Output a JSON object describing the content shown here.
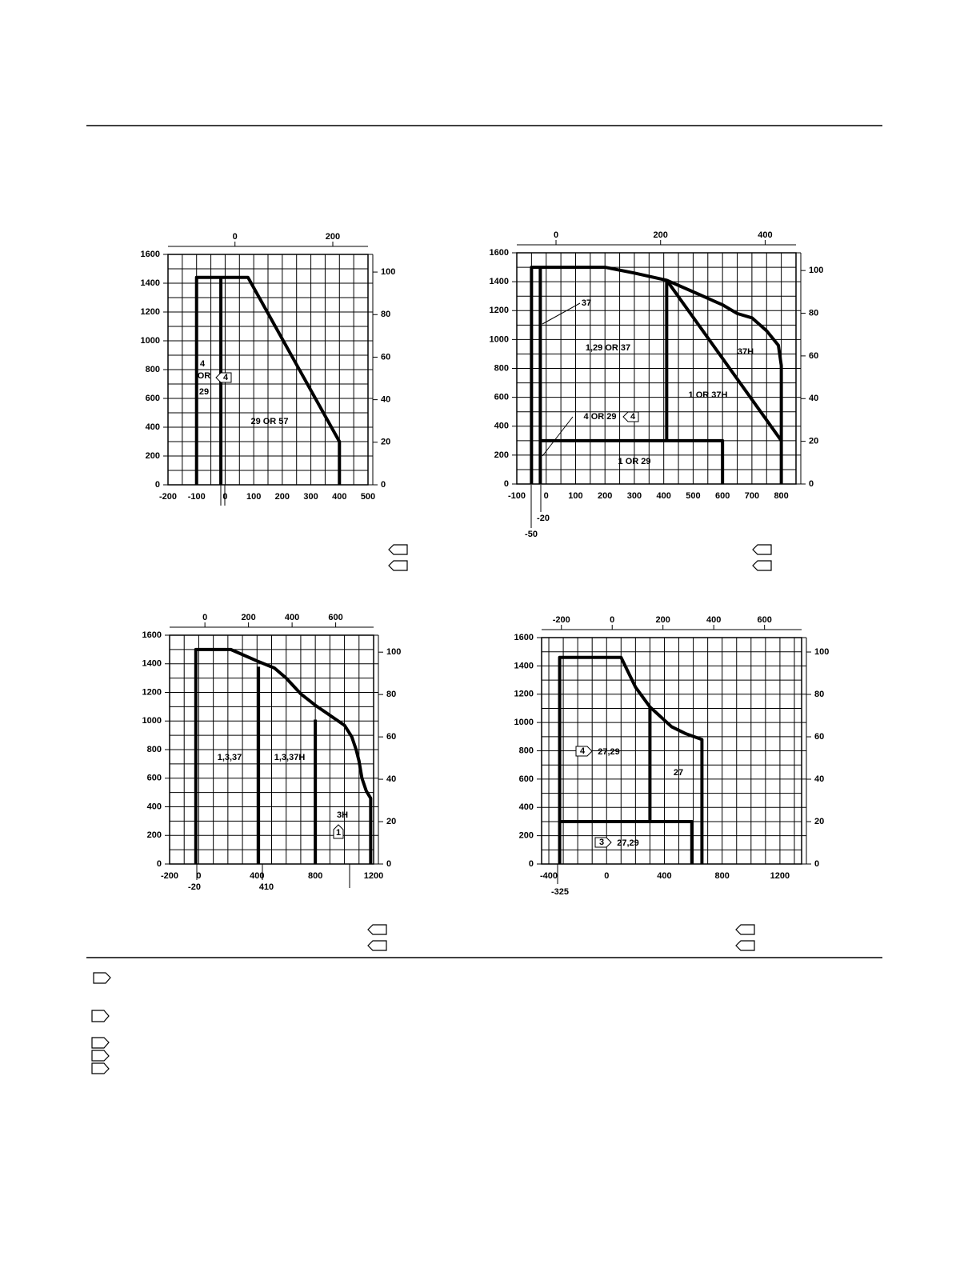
{
  "chart_data": [
    {
      "type": "line",
      "color": "#000000",
      "grid": true,
      "xlim": [
        -200,
        500
      ],
      "xticks": [
        -200,
        -100,
        0,
        100,
        200,
        300,
        400,
        500
      ],
      "xminor": [
        -150,
        -50,
        50,
        150,
        250,
        350,
        450
      ],
      "ylim": [
        0,
        1600
      ],
      "yticks": [
        0,
        200,
        400,
        600,
        800,
        1000,
        1200,
        1400,
        1600
      ],
      "yminor": [
        100,
        300,
        500,
        700,
        900,
        1100,
        1300,
        1500
      ],
      "x2lim": [
        -137,
        272
      ],
      "x2ticks": [
        0,
        200
      ],
      "y2lim": [
        0,
        108.3
      ],
      "y2ticks": [
        0,
        20,
        40,
        60,
        80,
        100
      ],
      "series": [
        {
          "x": [
            -100,
            -100,
            80,
            400,
            400
          ],
          "values": [
            0,
            1440,
            1440,
            300,
            0
          ]
        },
        {
          "x": [
            -15,
            -15
          ],
          "values": [
            0,
            1440
          ]
        }
      ],
      "annotations": [
        "4",
        "OR",
        "29",
        "4",
        "29 OR 57"
      ]
    },
    {
      "type": "line",
      "color": "#000000",
      "grid": true,
      "xlim": [
        -100,
        850
      ],
      "xticks": [
        -100,
        0,
        100,
        200,
        300,
        400,
        500,
        600,
        700,
        800
      ],
      "xminor": [
        -50,
        50,
        150,
        250,
        350,
        450,
        550,
        650,
        750
      ],
      "ylim": [
        0,
        1600
      ],
      "yticks": [
        0,
        200,
        400,
        600,
        800,
        1000,
        1200,
        1400,
        1600
      ],
      "yminor": [
        100,
        300,
        500,
        700,
        900,
        1100,
        1300,
        1500
      ],
      "x2lim": [
        -75,
        459
      ],
      "x2ticks": [
        0,
        200,
        400
      ],
      "y2lim": [
        0,
        108.3
      ],
      "y2ticks": [
        0,
        20,
        40,
        60,
        80,
        100
      ],
      "series": [
        {
          "x": [
            -50,
            -50,
            200,
            300,
            410,
            500,
            600,
            650,
            700,
            750,
            790,
            800,
            800
          ],
          "values": [
            0,
            1500,
            1500,
            1460,
            1410,
            1330,
            1240,
            1180,
            1150,
            1060,
            960,
            820,
            0
          ]
        },
        {
          "x": [
            -20,
            -20
          ],
          "values": [
            0,
            1500
          ]
        },
        {
          "x": [
            410,
            800
          ],
          "values": [
            1410,
            300
          ]
        },
        {
          "x": [
            410,
            410
          ],
          "values": [
            1410,
            300
          ]
        },
        {
          "x": [
            -20,
            600,
            600
          ],
          "values": [
            300,
            300,
            0
          ]
        }
      ],
      "annotations": [
        "37",
        "1,29 OR 37",
        "37H",
        "1 OR 37H",
        "4 OR 29",
        "4",
        "1 OR 29",
        "-20",
        "-50"
      ]
    },
    {
      "type": "line",
      "color": "#000000",
      "grid": true,
      "xlim": [
        -200,
        1200
      ],
      "xticks": [
        -200,
        0,
        400,
        800,
        1200
      ],
      "xminor": [
        -100,
        100,
        200,
        300,
        500,
        600,
        700,
        900,
        1000,
        1100
      ],
      "ylim": [
        0,
        1600
      ],
      "yticks": [
        0,
        200,
        400,
        600,
        800,
        1000,
        1200,
        1400,
        1600
      ],
      "yminor": [
        100,
        300,
        500,
        700,
        900,
        1100,
        1300,
        1500
      ],
      "x2lim": [
        -162,
        774
      ],
      "x2ticks": [
        0,
        200,
        400,
        600
      ],
      "y2lim": [
        0,
        108
      ],
      "y2ticks": [
        0,
        20,
        40,
        60,
        80,
        100
      ],
      "series": [
        {
          "x": [
            -20,
            -20,
            220,
            400,
            520,
            600,
            700,
            800,
            900,
            1000,
            1050,
            1080,
            1100,
            1120,
            1150,
            1180,
            1180
          ],
          "values": [
            0,
            1500,
            1500,
            1420,
            1370,
            1300,
            1190,
            1110,
            1040,
            970,
            890,
            800,
            720,
            600,
            510,
            460,
            0
          ]
        },
        {
          "x": [
            410,
            410
          ],
          "values": [
            0,
            1380
          ]
        },
        {
          "x": [
            800,
            800
          ],
          "values": [
            0,
            1010
          ]
        }
      ],
      "annotations": [
        "1,3,37",
        "1,3,37H",
        "3H",
        "1",
        "-20",
        "410"
      ]
    },
    {
      "type": "line",
      "color": "#000000",
      "grid": true,
      "xlim": [
        -450,
        1350
      ],
      "xticks": [
        -400,
        0,
        400,
        800,
        1200
      ],
      "xminor": [
        -300,
        -200,
        -100,
        100,
        200,
        300,
        500,
        600,
        700,
        900,
        1000,
        1100,
        1300
      ],
      "ylim": [
        0,
        1600
      ],
      "yticks": [
        0,
        200,
        400,
        600,
        800,
        1000,
        1200,
        1400,
        1600
      ],
      "yminor": [
        100,
        300,
        500,
        700,
        900,
        1100,
        1300,
        1500
      ],
      "x2lim": [
        -278,
        746
      ],
      "x2ticks": [
        -200,
        0,
        200,
        400,
        600
      ],
      "y2lim": [
        0,
        106.8
      ],
      "y2ticks": [
        0,
        20,
        40,
        60,
        80,
        100
      ],
      "series": [
        {
          "x": [
            -325,
            -325,
            100,
            200,
            300,
            450,
            550,
            660,
            660
          ],
          "values": [
            0,
            1460,
            1460,
            1250,
            1110,
            970,
            920,
            880,
            0
          ]
        },
        {
          "x": [
            300,
            300
          ],
          "values": [
            1110,
            300
          ]
        },
        {
          "x": [
            -325,
            590,
            590
          ],
          "values": [
            300,
            300,
            0
          ]
        }
      ],
      "annotations": [
        "4",
        "27,29",
        "27",
        "3",
        "27,29",
        "-325"
      ]
    }
  ]
}
